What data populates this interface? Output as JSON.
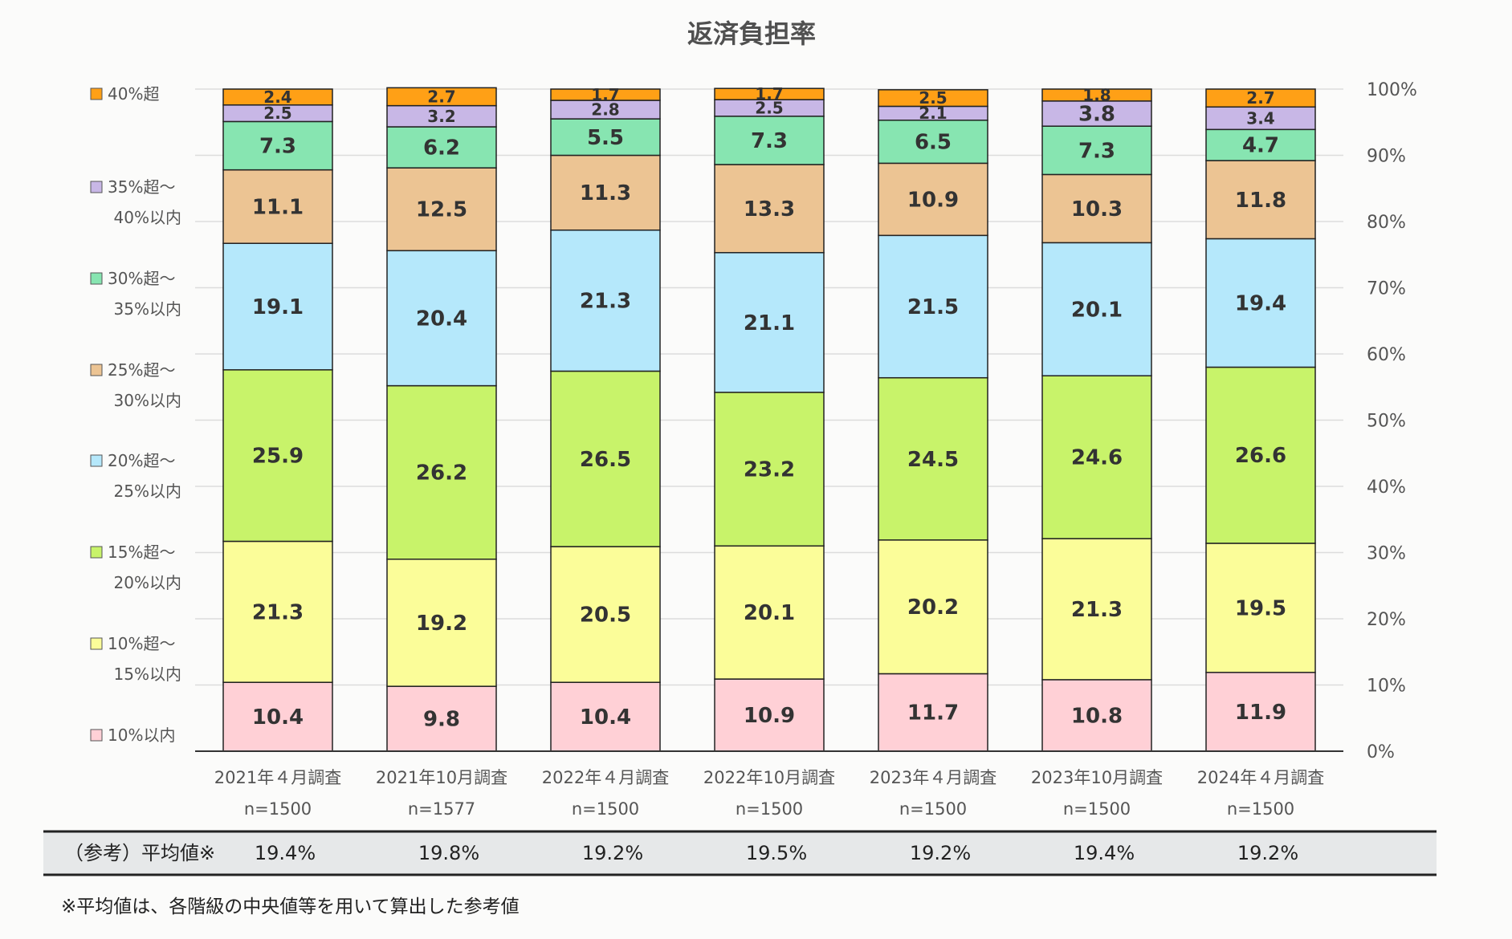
{
  "chart_data": {
    "type": "bar",
    "stacked": true,
    "title": "返済負担率",
    "categories": [
      "2021年４月調査",
      "2021年10月調査",
      "2022年４月調査",
      "2022年10月調査",
      "2023年４月調査",
      "2023年10月調査",
      "2024年４月調査"
    ],
    "sample_sizes": [
      "n=1500",
      "n=1577",
      "n=1500",
      "n=1500",
      "n=1500",
      "n=1500",
      "n=1500"
    ],
    "ylim": [
      0,
      100
    ],
    "yticks": [
      "0%",
      "10%",
      "20%",
      "30%",
      "40%",
      "50%",
      "60%",
      "70%",
      "80%",
      "90%",
      "100%"
    ],
    "grid": true,
    "legend_position": "left",
    "series": [
      {
        "name": "10%以内",
        "legend_lines": [
          "10%以内"
        ],
        "color": "#ffd0d6",
        "values": [
          10.4,
          9.8,
          10.4,
          10.9,
          11.7,
          10.8,
          11.9
        ]
      },
      {
        "name": "10%超～15%以内",
        "legend_lines": [
          "10%超～",
          "15%以内"
        ],
        "color": "#fbfd99",
        "values": [
          21.3,
          19.2,
          20.5,
          20.1,
          20.2,
          21.3,
          19.5
        ]
      },
      {
        "name": "15%超～20%以内",
        "legend_lines": [
          "15%超～",
          "20%以内"
        ],
        "color": "#c8f36a",
        "values": [
          25.9,
          26.2,
          26.5,
          23.2,
          24.5,
          24.6,
          26.6
        ]
      },
      {
        "name": "20%超～25%以内",
        "legend_lines": [
          "20%超～",
          "25%以内"
        ],
        "color": "#b5e8fb",
        "values": [
          19.1,
          20.4,
          21.3,
          21.1,
          21.5,
          20.1,
          19.4
        ]
      },
      {
        "name": "25%超～30%以内",
        "legend_lines": [
          "25%超～",
          "30%以内"
        ],
        "color": "#ecc493",
        "values": [
          11.1,
          12.5,
          11.3,
          13.3,
          10.9,
          10.3,
          11.8
        ]
      },
      {
        "name": "30%超～35%以内",
        "legend_lines": [
          "30%超～",
          "35%以内"
        ],
        "color": "#87e5b1",
        "values": [
          7.3,
          6.2,
          5.5,
          7.3,
          6.5,
          7.3,
          4.7
        ]
      },
      {
        "name": "35%超～40%以内",
        "legend_lines": [
          "35%超～",
          "40%以内"
        ],
        "color": "#c8b7e6",
        "values": [
          2.5,
          3.2,
          2.8,
          2.5,
          2.1,
          3.8,
          3.4
        ]
      },
      {
        "name": "40%超",
        "legend_lines": [
          "40%超"
        ],
        "color": "#ffa016",
        "values": [
          2.4,
          2.7,
          1.7,
          1.7,
          2.5,
          1.8,
          2.7
        ]
      }
    ]
  },
  "average_row": {
    "label": "（参考）平均値※",
    "values": [
      "19.4%",
      "19.8%",
      "19.2%",
      "19.5%",
      "19.2%",
      "19.4%",
      "19.2%"
    ]
  },
  "footnote": "※平均値は、各階級の中央値等を用いて算出した参考値"
}
